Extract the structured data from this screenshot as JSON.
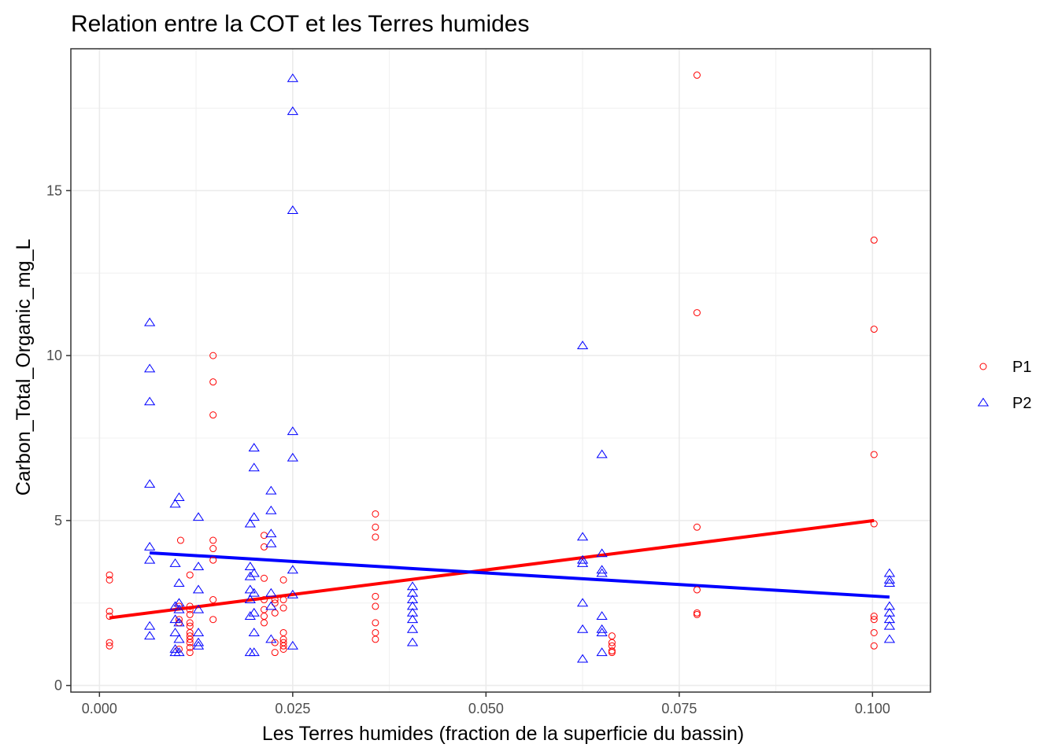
{
  "chart_data": {
    "type": "scatter",
    "title": "Relation entre la COT et les Terres humides",
    "xlabel": "Les Terres humides (fraction de la superficie du bassin)",
    "ylabel": "Carbon_Total_Organic_mg_L",
    "xlim": [
      -0.0037,
      0.1075
    ],
    "ylim": [
      -0.2,
      19.3
    ],
    "x_ticks": [
      0.0,
      0.025,
      0.05,
      0.075,
      0.1
    ],
    "x_tick_labels": [
      "0.000",
      "0.025",
      "0.050",
      "0.075",
      "0.100"
    ],
    "y_ticks": [
      0,
      5,
      10,
      15
    ],
    "y_tick_labels": [
      "0",
      "5",
      "10",
      "15"
    ],
    "grid": true,
    "legend_position": "right",
    "colors": {
      "P1": "#ff0000",
      "P2": "#0000ff"
    },
    "series": [
      {
        "name": "P1",
        "marker": "circle",
        "color": "#ff0000",
        "points": [
          [
            0.0013,
            3.35
          ],
          [
            0.0013,
            3.2
          ],
          [
            0.0013,
            2.25
          ],
          [
            0.0013,
            2.1
          ],
          [
            0.0013,
            1.3
          ],
          [
            0.0013,
            1.2
          ],
          [
            0.0105,
            4.4
          ],
          [
            0.0103,
            2.4
          ],
          [
            0.0103,
            2.0
          ],
          [
            0.0103,
            1.9
          ],
          [
            0.0103,
            1.1
          ],
          [
            0.0117,
            3.35
          ],
          [
            0.0117,
            2.4
          ],
          [
            0.0117,
            2.3
          ],
          [
            0.0117,
            2.15
          ],
          [
            0.0117,
            1.9
          ],
          [
            0.0117,
            1.8
          ],
          [
            0.0117,
            1.6
          ],
          [
            0.0117,
            1.5
          ],
          [
            0.0117,
            1.4
          ],
          [
            0.0117,
            1.3
          ],
          [
            0.0117,
            1.15
          ],
          [
            0.0117,
            1.0
          ],
          [
            0.0147,
            10.0
          ],
          [
            0.0147,
            9.2
          ],
          [
            0.0147,
            8.2
          ],
          [
            0.0147,
            4.4
          ],
          [
            0.0147,
            4.15
          ],
          [
            0.0147,
            3.8
          ],
          [
            0.0147,
            2.6
          ],
          [
            0.0147,
            2.0
          ],
          [
            0.0213,
            4.55
          ],
          [
            0.0213,
            4.2
          ],
          [
            0.0213,
            3.25
          ],
          [
            0.0213,
            2.6
          ],
          [
            0.0213,
            2.3
          ],
          [
            0.0213,
            2.1
          ],
          [
            0.0213,
            1.9
          ],
          [
            0.0227,
            2.6
          ],
          [
            0.0227,
            2.5
          ],
          [
            0.0227,
            2.2
          ],
          [
            0.0227,
            1.3
          ],
          [
            0.0227,
            1.0
          ],
          [
            0.0238,
            3.2
          ],
          [
            0.0238,
            2.6
          ],
          [
            0.0238,
            2.35
          ],
          [
            0.0238,
            1.6
          ],
          [
            0.0238,
            1.4
          ],
          [
            0.0238,
            1.3
          ],
          [
            0.0238,
            1.2
          ],
          [
            0.0238,
            1.1
          ],
          [
            0.0357,
            5.2
          ],
          [
            0.0357,
            4.8
          ],
          [
            0.0357,
            4.5
          ],
          [
            0.0357,
            2.7
          ],
          [
            0.0357,
            2.4
          ],
          [
            0.0357,
            1.9
          ],
          [
            0.0357,
            1.6
          ],
          [
            0.0357,
            1.4
          ],
          [
            0.0663,
            1.5
          ],
          [
            0.0663,
            1.3
          ],
          [
            0.0663,
            1.2
          ],
          [
            0.0663,
            1.05
          ],
          [
            0.0663,
            1.0
          ],
          [
            0.0773,
            18.5
          ],
          [
            0.0773,
            11.3
          ],
          [
            0.0773,
            4.8
          ],
          [
            0.0773,
            2.9
          ],
          [
            0.0773,
            2.2
          ],
          [
            0.0773,
            2.15
          ],
          [
            0.1002,
            13.5
          ],
          [
            0.1002,
            10.8
          ],
          [
            0.1002,
            7.0
          ],
          [
            0.1002,
            4.9
          ],
          [
            0.1002,
            2.1
          ],
          [
            0.1002,
            2.0
          ],
          [
            0.1002,
            1.6
          ],
          [
            0.1002,
            1.2
          ]
        ],
        "fit": {
          "x": [
            0.0013,
            0.1002
          ],
          "y": [
            2.05,
            5.0
          ]
        }
      },
      {
        "name": "P2",
        "marker": "triangle",
        "color": "#0000ff",
        "points": [
          [
            0.0065,
            11.0
          ],
          [
            0.0065,
            9.6
          ],
          [
            0.0065,
            8.6
          ],
          [
            0.0065,
            6.1
          ],
          [
            0.0065,
            4.2
          ],
          [
            0.0065,
            3.8
          ],
          [
            0.0065,
            1.8
          ],
          [
            0.0065,
            1.5
          ],
          [
            0.0098,
            5.5
          ],
          [
            0.0098,
            3.7
          ],
          [
            0.0098,
            2.4
          ],
          [
            0.0098,
            2.0
          ],
          [
            0.0098,
            1.6
          ],
          [
            0.0098,
            1.1
          ],
          [
            0.0098,
            1.0
          ],
          [
            0.0103,
            5.7
          ],
          [
            0.0103,
            3.1
          ],
          [
            0.0103,
            2.5
          ],
          [
            0.0103,
            2.3
          ],
          [
            0.0103,
            1.9
          ],
          [
            0.0103,
            1.4
          ],
          [
            0.0103,
            1.0
          ],
          [
            0.0128,
            5.1
          ],
          [
            0.0128,
            3.6
          ],
          [
            0.0128,
            2.9
          ],
          [
            0.0128,
            2.3
          ],
          [
            0.0128,
            1.6
          ],
          [
            0.0128,
            1.3
          ],
          [
            0.0128,
            1.2
          ],
          [
            0.0195,
            4.9
          ],
          [
            0.0195,
            3.6
          ],
          [
            0.0195,
            3.3
          ],
          [
            0.0195,
            2.9
          ],
          [
            0.0195,
            2.6
          ],
          [
            0.0195,
            2.1
          ],
          [
            0.0195,
            1.0
          ],
          [
            0.02,
            7.2
          ],
          [
            0.02,
            6.6
          ],
          [
            0.02,
            5.1
          ],
          [
            0.02,
            3.4
          ],
          [
            0.02,
            2.8
          ],
          [
            0.02,
            2.2
          ],
          [
            0.02,
            1.6
          ],
          [
            0.02,
            1.0
          ],
          [
            0.0222,
            5.9
          ],
          [
            0.0222,
            5.3
          ],
          [
            0.0222,
            4.6
          ],
          [
            0.0222,
            4.3
          ],
          [
            0.0222,
            2.8
          ],
          [
            0.0222,
            2.4
          ],
          [
            0.0222,
            1.4
          ],
          [
            0.025,
            18.4
          ],
          [
            0.025,
            17.4
          ],
          [
            0.025,
            14.4
          ],
          [
            0.025,
            7.7
          ],
          [
            0.025,
            6.9
          ],
          [
            0.025,
            3.5
          ],
          [
            0.025,
            2.75
          ],
          [
            0.025,
            1.2
          ],
          [
            0.0405,
            3.0
          ],
          [
            0.0405,
            2.8
          ],
          [
            0.0405,
            2.6
          ],
          [
            0.0405,
            2.4
          ],
          [
            0.0405,
            2.2
          ],
          [
            0.0405,
            2.0
          ],
          [
            0.0405,
            1.7
          ],
          [
            0.0405,
            1.3
          ],
          [
            0.0625,
            10.3
          ],
          [
            0.0625,
            4.5
          ],
          [
            0.0625,
            3.8
          ],
          [
            0.0625,
            3.7
          ],
          [
            0.0625,
            2.5
          ],
          [
            0.0625,
            1.7
          ],
          [
            0.0625,
            0.8
          ],
          [
            0.065,
            7.0
          ],
          [
            0.065,
            4.0
          ],
          [
            0.065,
            3.5
          ],
          [
            0.065,
            3.4
          ],
          [
            0.065,
            2.1
          ],
          [
            0.065,
            1.7
          ],
          [
            0.065,
            1.6
          ],
          [
            0.065,
            1.0
          ],
          [
            0.1022,
            3.4
          ],
          [
            0.1022,
            3.2
          ],
          [
            0.1022,
            3.1
          ],
          [
            0.1022,
            2.4
          ],
          [
            0.1022,
            2.2
          ],
          [
            0.1022,
            2.0
          ],
          [
            0.1022,
            1.8
          ],
          [
            0.1022,
            1.4
          ]
        ],
        "fit": {
          "x": [
            0.0065,
            0.1022
          ],
          "y": [
            4.02,
            2.68
          ]
        }
      }
    ]
  }
}
